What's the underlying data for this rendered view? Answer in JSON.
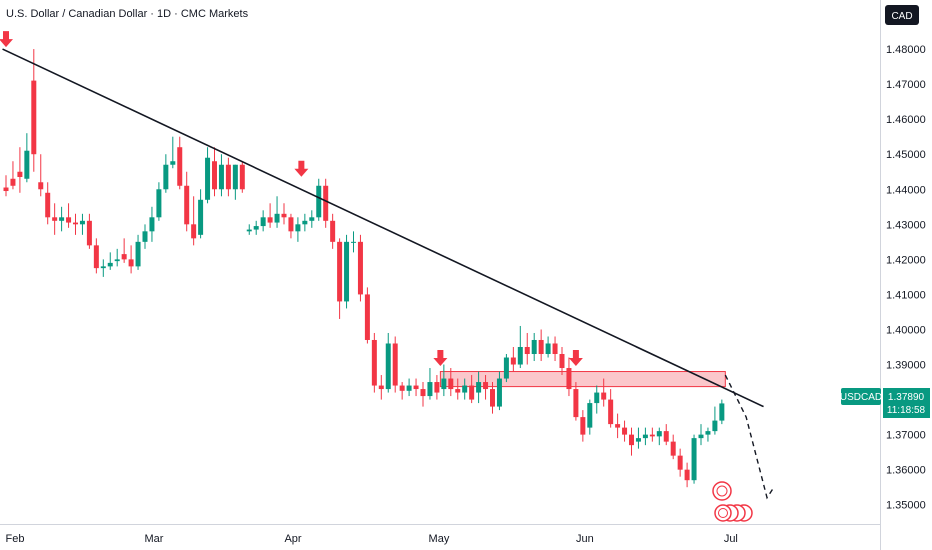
{
  "chart_data": {
    "type": "candlestick",
    "title": "U.S. Dollar / Canadian Dollar · 1D · CMC Markets",
    "currency": "CAD",
    "symbol": "USDCAD",
    "last_price": "1.37890",
    "countdown": "11:18:58",
    "x_labels": [
      "Feb",
      "Mar",
      "Apr",
      "May",
      "Jun",
      "Jul"
    ],
    "y_ticks": [
      "1.48000",
      "1.47000",
      "1.46000",
      "1.45000",
      "1.44000",
      "1.43000",
      "1.42000",
      "1.41000",
      "1.40000",
      "1.39000",
      "1.38000",
      "1.37000",
      "1.36000",
      "1.35000"
    ],
    "ylim": [
      1.3445,
      1.494
    ],
    "bull_color": "#089981",
    "bear_color": "#f23645",
    "candles": [
      [
        1.4405,
        1.444,
        1.438,
        1.4395
      ],
      [
        1.443,
        1.448,
        1.44,
        1.441
      ],
      [
        1.445,
        1.452,
        1.439,
        1.4435
      ],
      [
        1.443,
        1.456,
        1.442,
        1.451
      ],
      [
        1.471,
        1.48,
        1.445,
        1.45
      ],
      [
        1.442,
        1.45,
        1.438,
        1.44
      ],
      [
        1.439,
        1.442,
        1.43,
        1.432
      ],
      [
        1.432,
        1.436,
        1.427,
        1.431
      ],
      [
        1.431,
        1.435,
        1.428,
        1.432
      ],
      [
        1.432,
        1.436,
        1.429,
        1.4305
      ],
      [
        1.4305,
        1.433,
        1.427,
        1.43
      ],
      [
        1.43,
        1.433,
        1.427,
        1.431
      ],
      [
        1.431,
        1.433,
        1.423,
        1.424
      ],
      [
        1.424,
        1.426,
        1.416,
        1.4175
      ],
      [
        1.4175,
        1.42,
        1.415,
        1.418
      ],
      [
        1.418,
        1.422,
        1.417,
        1.419
      ],
      [
        1.4195,
        1.423,
        1.418,
        1.42
      ],
      [
        1.4215,
        1.426,
        1.419,
        1.42
      ],
      [
        1.42,
        1.424,
        1.416,
        1.418
      ],
      [
        1.418,
        1.427,
        1.417,
        1.425
      ],
      [
        1.425,
        1.43,
        1.423,
        1.428
      ],
      [
        1.428,
        1.435,
        1.425,
        1.432
      ],
      [
        1.432,
        1.442,
        1.431,
        1.44
      ],
      [
        1.44,
        1.45,
        1.439,
        1.447
      ],
      [
        1.447,
        1.455,
        1.446,
        1.448
      ],
      [
        1.452,
        1.455,
        1.44,
        1.441
      ],
      [
        1.441,
        1.445,
        1.428,
        1.43
      ],
      [
        1.43,
        1.438,
        1.424,
        1.426
      ],
      [
        1.427,
        1.44,
        1.426,
        1.437
      ],
      [
        1.437,
        1.452,
        1.436,
        1.449
      ],
      [
        1.448,
        1.452,
        1.438,
        1.44
      ],
      [
        1.44,
        1.45,
        1.438,
        1.447
      ],
      [
        1.447,
        1.449,
        1.438,
        1.44
      ],
      [
        1.44,
        1.447,
        1.437,
        1.447
      ],
      [
        1.447,
        1.448,
        1.439,
        1.44
      ],
      [
        1.428,
        1.43,
        1.427,
        1.4285
      ],
      [
        1.4285,
        1.431,
        1.427,
        1.4295
      ],
      [
        1.4295,
        1.434,
        1.428,
        1.432
      ],
      [
        1.432,
        1.436,
        1.429,
        1.4305
      ],
      [
        1.4305,
        1.438,
        1.429,
        1.433
      ],
      [
        1.433,
        1.436,
        1.43,
        1.432
      ],
      [
        1.432,
        1.433,
        1.426,
        1.428
      ],
      [
        1.428,
        1.432,
        1.425,
        1.43
      ],
      [
        1.43,
        1.433,
        1.428,
        1.431
      ],
      [
        1.431,
        1.434,
        1.429,
        1.432
      ],
      [
        1.432,
        1.443,
        1.431,
        1.441
      ],
      [
        1.441,
        1.443,
        1.429,
        1.431
      ],
      [
        1.431,
        1.433,
        1.423,
        1.425
      ],
      [
        1.425,
        1.426,
        1.403,
        1.408
      ],
      [
        1.408,
        1.427,
        1.406,
        1.425
      ],
      [
        1.425,
        1.428,
        1.422,
        1.425
      ],
      [
        1.425,
        1.427,
        1.408,
        1.41
      ],
      [
        1.41,
        1.412,
        1.396,
        1.397
      ],
      [
        1.397,
        1.399,
        1.382,
        1.384
      ],
      [
        1.384,
        1.387,
        1.38,
        1.383
      ],
      [
        1.383,
        1.399,
        1.382,
        1.396
      ],
      [
        1.396,
        1.398,
        1.382,
        1.384
      ],
      [
        1.384,
        1.385,
        1.38,
        1.3825
      ],
      [
        1.3825,
        1.386,
        1.381,
        1.384
      ],
      [
        1.384,
        1.386,
        1.381,
        1.383
      ],
      [
        1.383,
        1.385,
        1.378,
        1.381
      ],
      [
        1.381,
        1.389,
        1.38,
        1.385
      ],
      [
        1.385,
        1.387,
        1.38,
        1.382
      ],
      [
        1.383,
        1.39,
        1.381,
        1.386
      ],
      [
        1.386,
        1.389,
        1.381,
        1.383
      ],
      [
        1.383,
        1.386,
        1.38,
        1.382
      ],
      [
        1.382,
        1.386,
        1.38,
        1.384
      ],
      [
        1.384,
        1.387,
        1.379,
        1.38
      ],
      [
        1.382,
        1.388,
        1.379,
        1.385
      ],
      [
        1.385,
        1.387,
        1.38,
        1.383
      ],
      [
        1.383,
        1.385,
        1.376,
        1.378
      ],
      [
        1.378,
        1.388,
        1.377,
        1.386
      ],
      [
        1.386,
        1.393,
        1.385,
        1.392
      ],
      [
        1.392,
        1.395,
        1.388,
        1.39
      ],
      [
        1.39,
        1.401,
        1.389,
        1.395
      ],
      [
        1.395,
        1.399,
        1.39,
        1.393
      ],
      [
        1.393,
        1.399,
        1.391,
        1.397
      ],
      [
        1.397,
        1.4,
        1.391,
        1.393
      ],
      [
        1.393,
        1.398,
        1.392,
        1.396
      ],
      [
        1.396,
        1.398,
        1.391,
        1.393
      ],
      [
        1.393,
        1.395,
        1.387,
        1.389
      ],
      [
        1.389,
        1.392,
        1.381,
        1.383
      ],
      [
        1.383,
        1.385,
        1.374,
        1.375
      ],
      [
        1.375,
        1.377,
        1.368,
        1.37
      ],
      [
        1.372,
        1.38,
        1.37,
        1.379
      ],
      [
        1.379,
        1.384,
        1.376,
        1.382
      ],
      [
        1.382,
        1.386,
        1.378,
        1.38
      ],
      [
        1.38,
        1.383,
        1.372,
        1.373
      ],
      [
        1.373,
        1.376,
        1.369,
        1.372
      ],
      [
        1.372,
        1.374,
        1.368,
        1.37
      ],
      [
        1.37,
        1.372,
        1.364,
        1.367
      ],
      [
        1.368,
        1.372,
        1.366,
        1.369
      ],
      [
        1.369,
        1.372,
        1.367,
        1.37
      ],
      [
        1.37,
        1.372,
        1.368,
        1.3695
      ],
      [
        1.3695,
        1.372,
        1.367,
        1.371
      ],
      [
        1.371,
        1.373,
        1.367,
        1.368
      ],
      [
        1.368,
        1.37,
        1.363,
        1.364
      ],
      [
        1.364,
        1.366,
        1.358,
        1.36
      ],
      [
        1.36,
        1.362,
        1.355,
        1.357
      ],
      [
        1.357,
        1.37,
        1.356,
        1.369
      ],
      [
        1.369,
        1.373,
        1.367,
        1.37
      ],
      [
        1.37,
        1.372,
        1.368,
        1.371
      ],
      [
        1.371,
        1.378,
        1.37,
        1.374
      ],
      [
        1.374,
        1.38,
        1.373,
        1.3789
      ]
    ],
    "trendline": [
      [
        -0.5,
        1.48
      ],
      [
        109,
        1.378
      ]
    ],
    "resistance_zone": {
      "x_from": 62.5,
      "x_to": 103.5,
      "y_from": 1.3837,
      "y_to": 1.388
    },
    "projection": [
      [
        103.5,
        1.387
      ],
      [
        106.5,
        1.375
      ],
      [
        109.5,
        1.352
      ],
      [
        110.5,
        1.355
      ]
    ],
    "arrows": [
      [
        0,
        1.48
      ],
      [
        42.5,
        1.443
      ],
      [
        62.5,
        1.389
      ],
      [
        82,
        1.389
      ]
    ],
    "month_index": [
      0,
      20,
      40,
      61,
      82,
      103
    ]
  }
}
